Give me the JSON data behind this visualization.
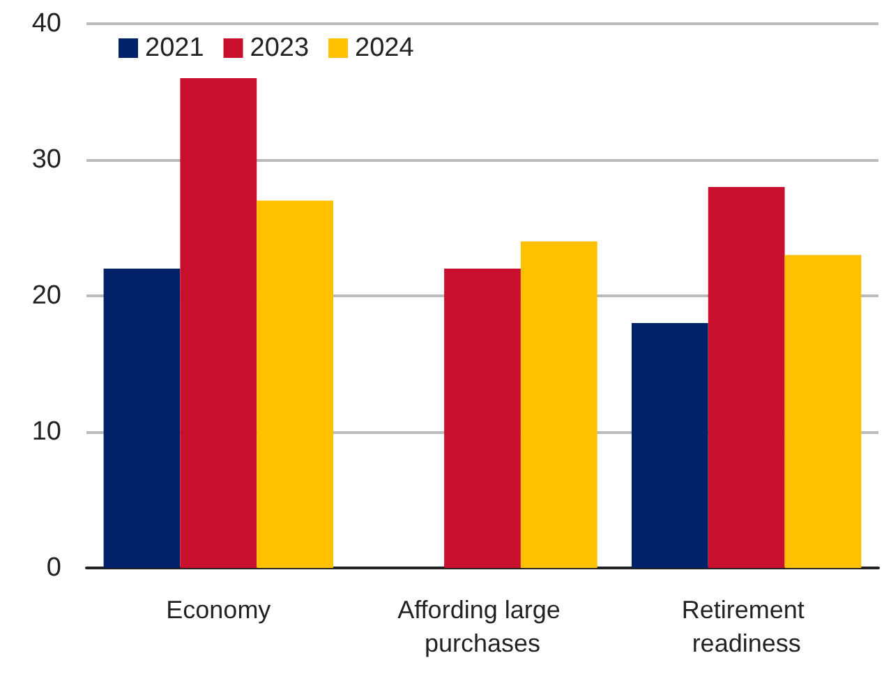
{
  "chart_data": {
    "type": "bar",
    "categories": [
      "Economy",
      "Affording large purchases",
      "Retirement readiness"
    ],
    "series": [
      {
        "name": "2021",
        "color": "#012169",
        "values": [
          22,
          null,
          18
        ]
      },
      {
        "name": "2023",
        "color": "#c8102e",
        "values": [
          36,
          22,
          28
        ]
      },
      {
        "name": "2024",
        "color": "#ffc000",
        "values": [
          27,
          24,
          23
        ]
      }
    ],
    "ylim": [
      0,
      40
    ],
    "yticks": [
      0,
      10,
      20,
      30,
      40
    ],
    "grid": "y",
    "legend": "top left"
  }
}
